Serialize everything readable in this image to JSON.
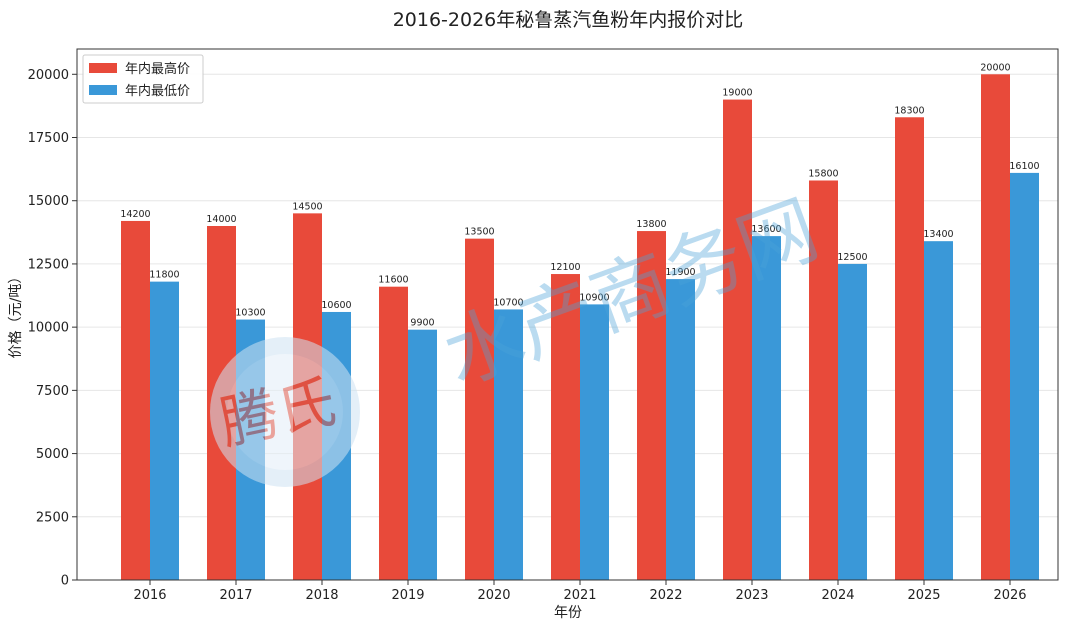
{
  "chart_data": {
    "type": "bar",
    "title": "2016-2026年秘鲁蒸汽鱼粉年内报价对比",
    "xlabel": "年份",
    "ylabel": "价格（元/吨）",
    "categories": [
      "2016",
      "2017",
      "2018",
      "2019",
      "2020",
      "2021",
      "2022",
      "2023",
      "2024",
      "2025",
      "2026"
    ],
    "series": [
      {
        "name": "年内最高价",
        "color": "#e84a3a",
        "values": [
          14200,
          14000,
          14500,
          11600,
          13500,
          12100,
          13800,
          19000,
          15800,
          18300,
          20000
        ]
      },
      {
        "name": "年内最低价",
        "color": "#3a98d8",
        "values": [
          11800,
          10300,
          10600,
          9900,
          10700,
          10900,
          11900,
          13600,
          12500,
          13400,
          16100
        ]
      }
    ],
    "ylim": [
      0,
      21000
    ],
    "yticks": [
      0,
      2500,
      5000,
      7500,
      10000,
      12500,
      15000,
      17500,
      20000
    ],
    "grid": "horizontal",
    "legend": "top-left"
  },
  "watermarks": {
    "logo_text": "腾氏",
    "site_text": "水产商务网"
  }
}
